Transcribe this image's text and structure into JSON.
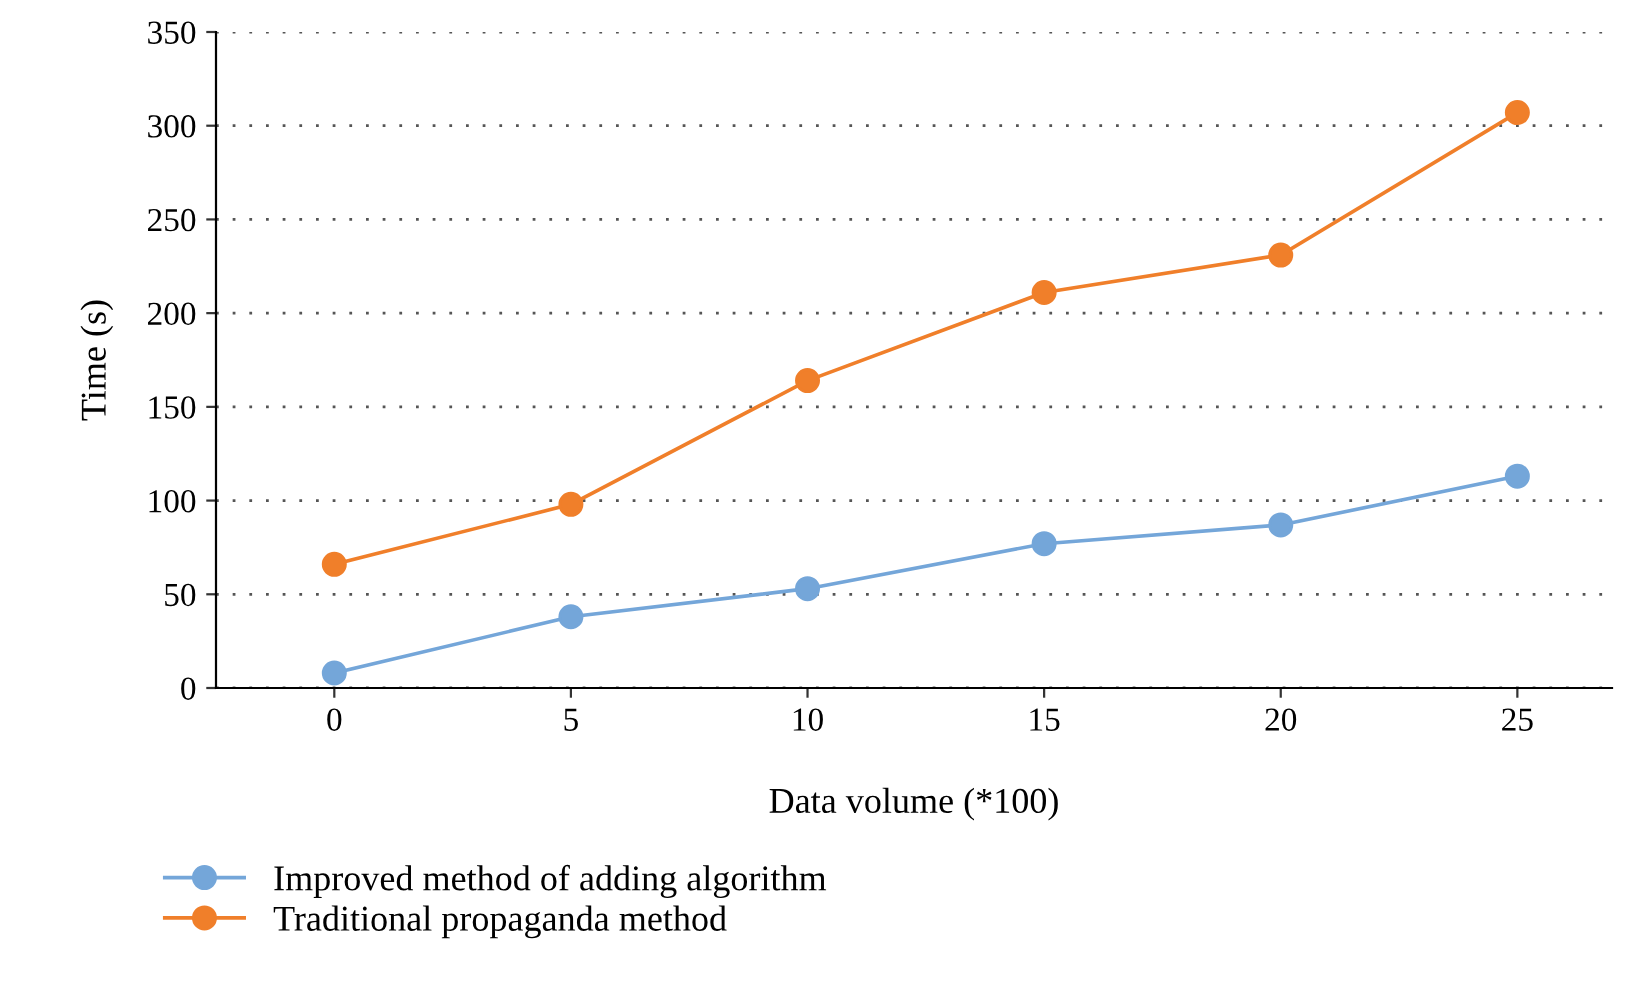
{
  "chart_data": {
    "type": "line",
    "xlabel": "Data volume (*100)",
    "ylabel": "Time (s)",
    "x": [
      0,
      5,
      10,
      15,
      20,
      25
    ],
    "series": [
      {
        "name": "Improved method of adding algorithm",
        "color": "#74a6d9",
        "values": [
          8,
          38,
          53,
          77,
          87,
          113
        ]
      },
      {
        "name": "Traditional propaganda method",
        "color": "#f07f2a",
        "values": [
          66,
          98,
          164,
          211,
          231,
          307
        ]
      }
    ],
    "xlim": [
      -2.5,
      27
    ],
    "xticks": [
      0,
      5,
      10,
      15,
      20,
      25
    ],
    "ylim": [
      0,
      350
    ],
    "yticks": [
      0,
      50,
      100,
      150,
      200,
      250,
      300,
      350
    ],
    "grid": "y",
    "legend": "bottom left",
    "marker": "circle",
    "line_style": "solid"
  }
}
